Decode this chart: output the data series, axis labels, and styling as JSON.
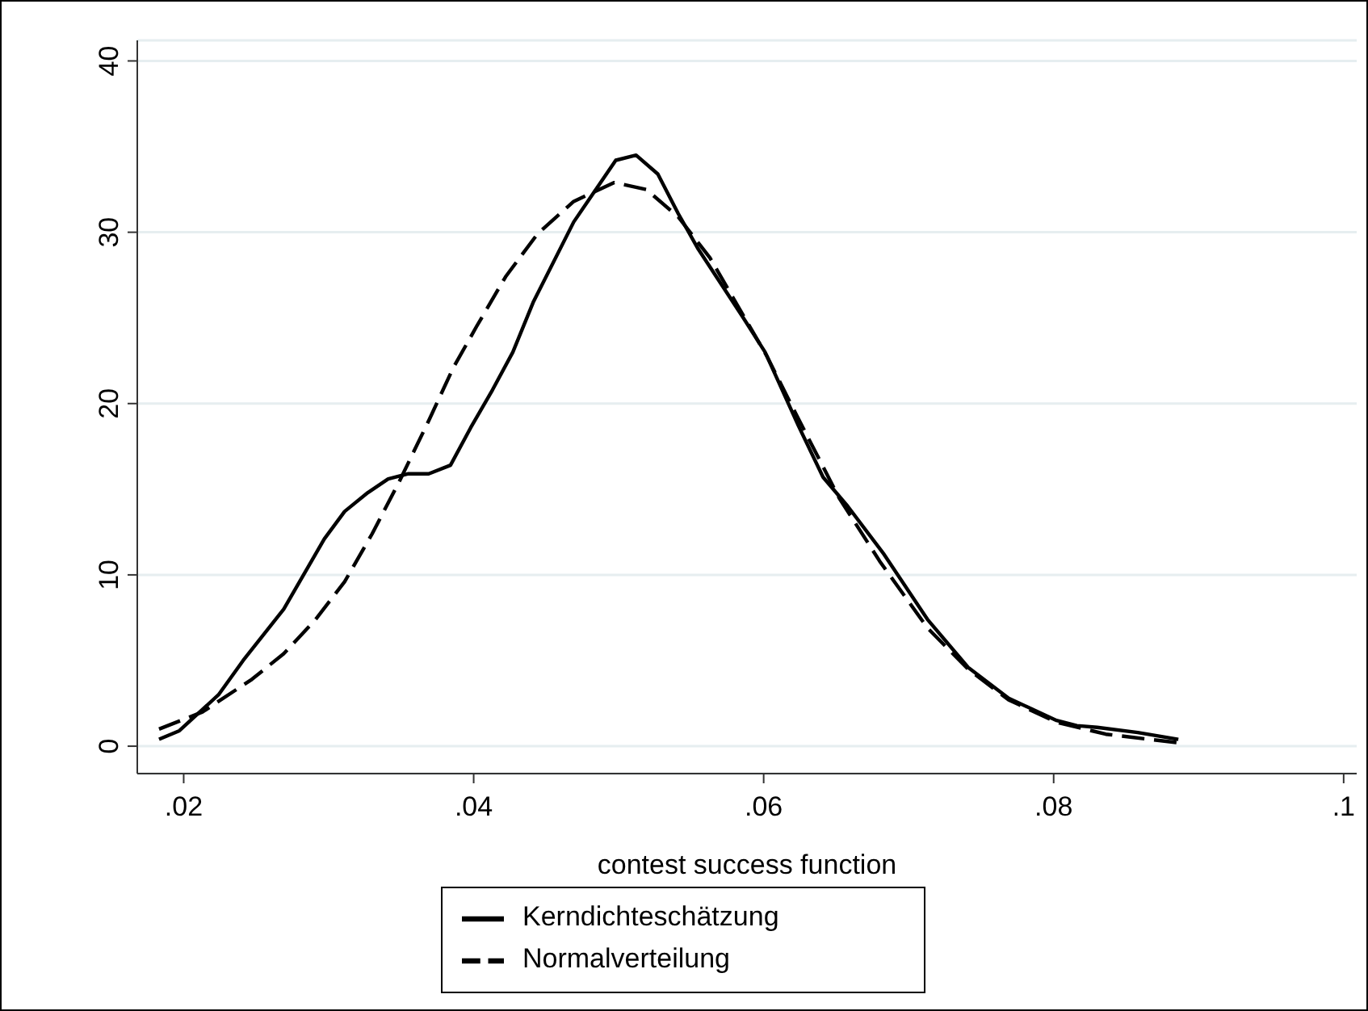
{
  "chart_data": {
    "type": "line",
    "xlabel": "contest success function",
    "xlim": [
      0.0168,
      0.1009
    ],
    "ylim": [
      -1.6,
      41.2
    ],
    "xticks": [
      {
        "value": 0.02,
        "label": ".02"
      },
      {
        "value": 0.04,
        "label": ".04"
      },
      {
        "value": 0.06,
        "label": ".06"
      },
      {
        "value": 0.08,
        "label": ".08"
      },
      {
        "value": 0.1,
        "label": ".1"
      }
    ],
    "yticks": [
      0,
      10,
      20,
      30,
      40
    ],
    "grid": "y",
    "legend": "bottom",
    "marker": "none",
    "series": [
      {
        "name": "Kerndichteschätzung",
        "color": "#000000",
        "line_style": "solid",
        "x": [
          0.0183,
          0.0197,
          0.0224,
          0.0241,
          0.0269,
          0.0297,
          0.0311,
          0.0327,
          0.0341,
          0.0355,
          0.0369,
          0.0384,
          0.0398,
          0.0413,
          0.0427,
          0.0441,
          0.0469,
          0.0498,
          0.0512,
          0.0527,
          0.0541,
          0.0555,
          0.0586,
          0.0601,
          0.0624,
          0.0641,
          0.0658,
          0.0683,
          0.0713,
          0.0741,
          0.0769,
          0.0802,
          0.0816,
          0.083,
          0.0858,
          0.0886
        ],
        "values": [
          0.4,
          0.9,
          3.0,
          5.0,
          8.0,
          12.1,
          13.7,
          14.8,
          15.6,
          15.9,
          15.9,
          16.4,
          18.6,
          20.8,
          23.0,
          25.9,
          30.6,
          34.2,
          34.5,
          33.4,
          31.1,
          29.0,
          25.0,
          23.0,
          18.7,
          15.7,
          14.0,
          11.2,
          7.4,
          4.6,
          2.8,
          1.5,
          1.2,
          1.1,
          0.8,
          0.4
        ]
      },
      {
        "name": "Normalverteilung",
        "color": "#000000",
        "line_style": "dashed",
        "x": [
          0.0183,
          0.0213,
          0.0247,
          0.0269,
          0.0291,
          0.0311,
          0.033,
          0.0349,
          0.0369,
          0.0386,
          0.0402,
          0.0422,
          0.0444,
          0.0469,
          0.0497,
          0.0519,
          0.0541,
          0.0563,
          0.0602,
          0.0624,
          0.0652,
          0.068,
          0.0713,
          0.0741,
          0.0769,
          0.0802,
          0.0836,
          0.0886
        ],
        "values": [
          1.0,
          2.0,
          3.9,
          5.4,
          7.4,
          9.6,
          12.4,
          15.5,
          19.0,
          22.1,
          24.5,
          27.4,
          29.9,
          31.8,
          32.9,
          32.5,
          30.9,
          28.5,
          22.8,
          19.1,
          14.5,
          10.8,
          6.9,
          4.5,
          2.7,
          1.4,
          0.7,
          0.2
        ]
      }
    ]
  }
}
